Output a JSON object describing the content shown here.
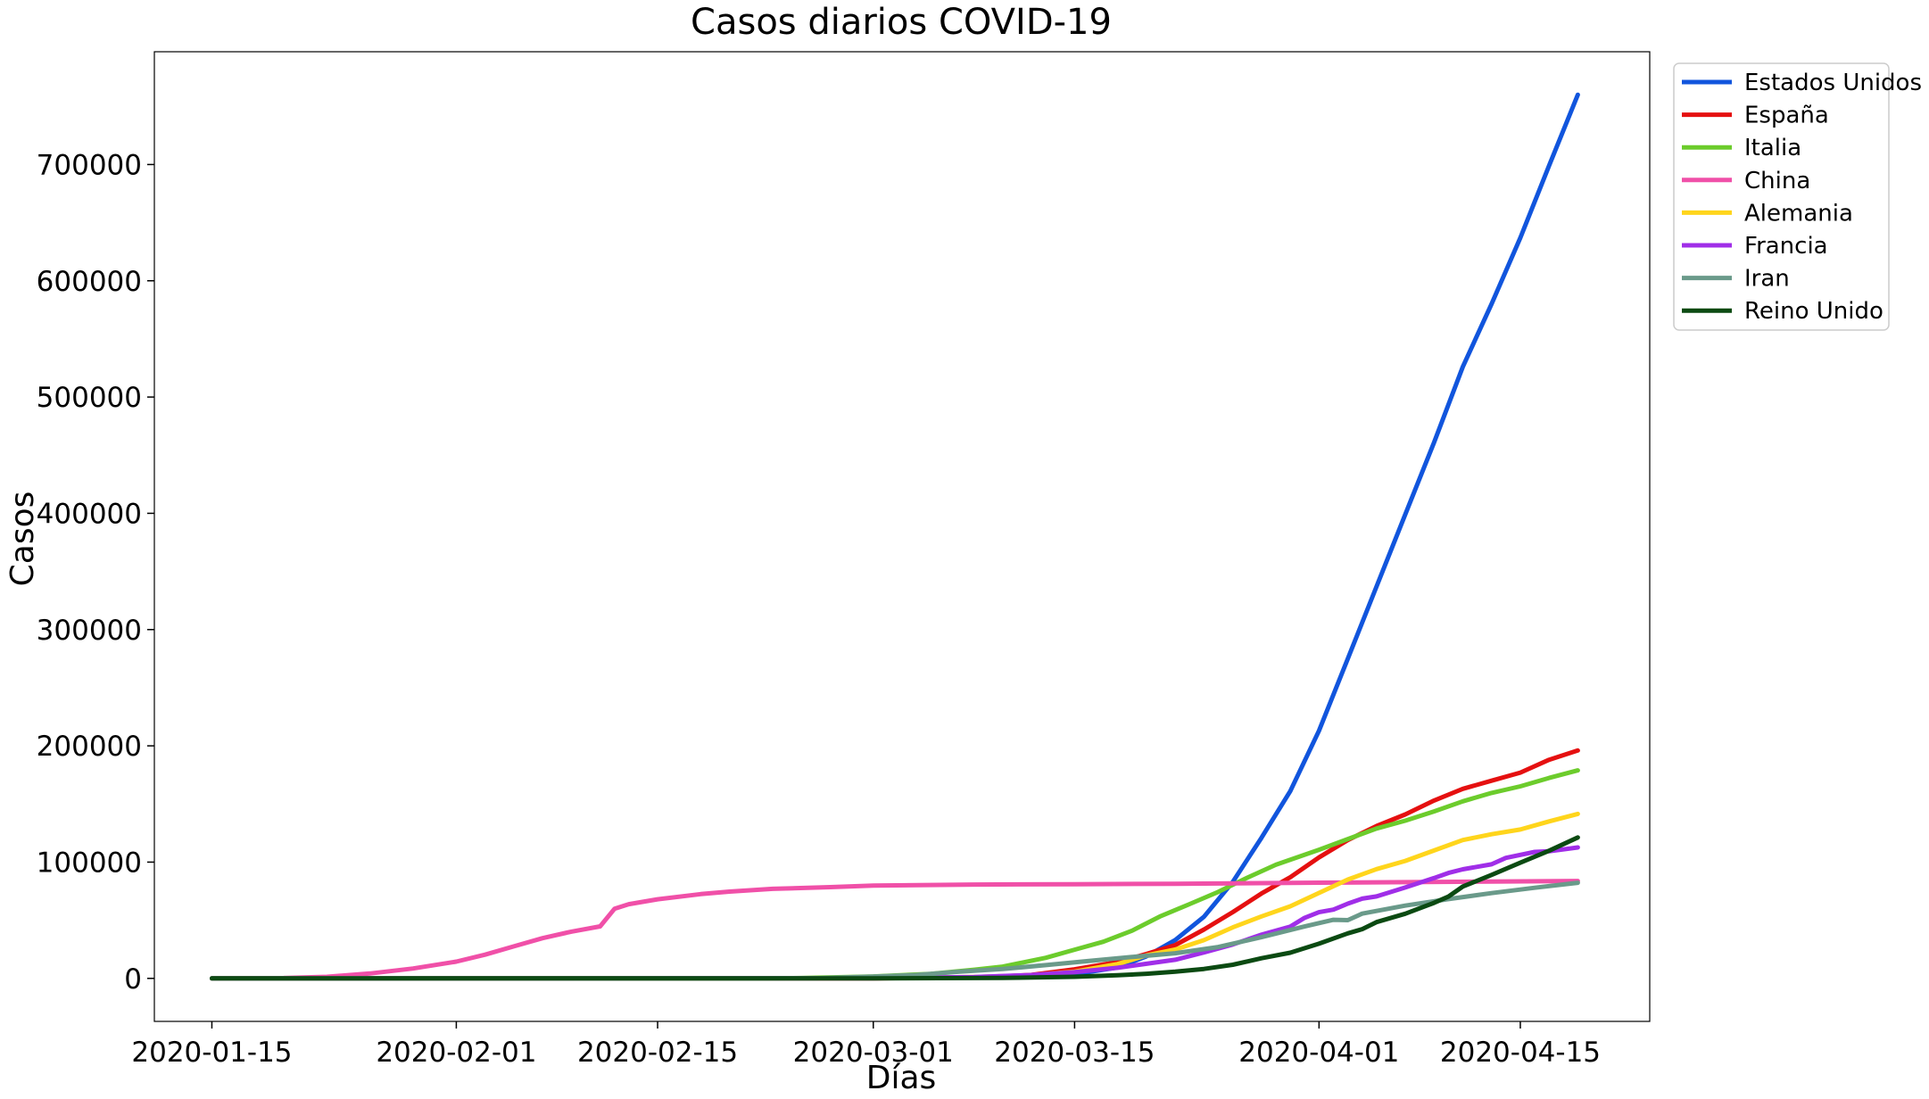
{
  "chart_data": {
    "type": "line",
    "title": "Casos diarios COVID-19",
    "xlabel": "Días",
    "ylabel": "Casos",
    "x_start": "2020-01-15",
    "x_end": "2020-04-19",
    "xlim": [
      "2020-01-11",
      "2020-04-24"
    ],
    "ylim": [
      -37000,
      797000
    ],
    "x_ticks": [
      "2020-01-15",
      "2020-02-01",
      "2020-02-15",
      "2020-03-01",
      "2020-03-15",
      "2020-04-01",
      "2020-04-15"
    ],
    "y_ticks": [
      0,
      100000,
      200000,
      300000,
      400000,
      500000,
      600000,
      700000
    ],
    "grid": false,
    "legend_position": "outside-top-right",
    "series": [
      {
        "name": "Estados Unidos",
        "color": "#1155dd",
        "points": [
          [
            "2020-01-15",
            0
          ],
          [
            "2020-03-01",
            100
          ],
          [
            "2020-03-10",
            1000
          ],
          [
            "2020-03-15",
            3500
          ],
          [
            "2020-03-18",
            9400
          ],
          [
            "2020-03-20",
            19000
          ],
          [
            "2020-03-22",
            33000
          ],
          [
            "2020-03-24",
            53000
          ],
          [
            "2020-03-26",
            83000
          ],
          [
            "2020-03-28",
            121000
          ],
          [
            "2020-03-30",
            161000
          ],
          [
            "2020-04-01",
            213000
          ],
          [
            "2020-04-03",
            275000
          ],
          [
            "2020-04-05",
            337000
          ],
          [
            "2020-04-07",
            399000
          ],
          [
            "2020-04-09",
            461000
          ],
          [
            "2020-04-11",
            526000
          ],
          [
            "2020-04-13",
            580000
          ],
          [
            "2020-04-15",
            637000
          ],
          [
            "2020-04-17",
            699000
          ],
          [
            "2020-04-19",
            760000
          ]
        ]
      },
      {
        "name": "España",
        "color": "#e51010",
        "points": [
          [
            "2020-01-15",
            0
          ],
          [
            "2020-03-01",
            80
          ],
          [
            "2020-03-08",
            700
          ],
          [
            "2020-03-12",
            3000
          ],
          [
            "2020-03-15",
            7800
          ],
          [
            "2020-03-18",
            14000
          ],
          [
            "2020-03-20",
            21000
          ],
          [
            "2020-03-22",
            28600
          ],
          [
            "2020-03-24",
            42000
          ],
          [
            "2020-03-26",
            57000
          ],
          [
            "2020-03-28",
            73000
          ],
          [
            "2020-03-30",
            87000
          ],
          [
            "2020-04-01",
            104000
          ],
          [
            "2020-04-03",
            119000
          ],
          [
            "2020-04-05",
            131000
          ],
          [
            "2020-04-07",
            141000
          ],
          [
            "2020-04-09",
            153000
          ],
          [
            "2020-04-11",
            163000
          ],
          [
            "2020-04-13",
            170000
          ],
          [
            "2020-04-15",
            177000
          ],
          [
            "2020-04-17",
            188000
          ],
          [
            "2020-04-19",
            196000
          ]
        ]
      },
      {
        "name": "Italia",
        "color": "#6ccc2c",
        "points": [
          [
            "2020-01-15",
            0
          ],
          [
            "2020-02-20",
            0
          ],
          [
            "2020-02-25",
            300
          ],
          [
            "2020-03-01",
            1700
          ],
          [
            "2020-03-05",
            3900
          ],
          [
            "2020-03-08",
            7400
          ],
          [
            "2020-03-10",
            10100
          ],
          [
            "2020-03-13",
            17700
          ],
          [
            "2020-03-15",
            24700
          ],
          [
            "2020-03-17",
            31500
          ],
          [
            "2020-03-19",
            41000
          ],
          [
            "2020-03-21",
            53600
          ],
          [
            "2020-03-23",
            63900
          ],
          [
            "2020-03-25",
            74400
          ],
          [
            "2020-03-27",
            86500
          ],
          [
            "2020-03-29",
            97700
          ],
          [
            "2020-04-01",
            110600
          ],
          [
            "2020-04-03",
            119800
          ],
          [
            "2020-04-05",
            128900
          ],
          [
            "2020-04-07",
            135600
          ],
          [
            "2020-04-09",
            143600
          ],
          [
            "2020-04-11",
            152300
          ],
          [
            "2020-04-13",
            159500
          ],
          [
            "2020-04-15",
            165200
          ],
          [
            "2020-04-17",
            172400
          ],
          [
            "2020-04-19",
            178900
          ]
        ]
      },
      {
        "name": "China",
        "color": "#f050a8",
        "points": [
          [
            "2020-01-15",
            0
          ],
          [
            "2020-01-20",
            300
          ],
          [
            "2020-01-23",
            1400
          ],
          [
            "2020-01-26",
            4200
          ],
          [
            "2020-01-29",
            8500
          ],
          [
            "2020-02-01",
            14400
          ],
          [
            "2020-02-03",
            20400
          ],
          [
            "2020-02-05",
            27500
          ],
          [
            "2020-02-07",
            34600
          ],
          [
            "2020-02-09",
            40200
          ],
          [
            "2020-02-11",
            44700
          ],
          [
            "2020-02-12",
            59800
          ],
          [
            "2020-02-13",
            63800
          ],
          [
            "2020-02-15",
            68000
          ],
          [
            "2020-02-18",
            72500
          ],
          [
            "2020-02-20",
            74600
          ],
          [
            "2020-02-23",
            77000
          ],
          [
            "2020-02-27",
            78500
          ],
          [
            "2020-03-01",
            79800
          ],
          [
            "2020-03-08",
            80700
          ],
          [
            "2020-03-15",
            81000
          ],
          [
            "2020-03-22",
            81400
          ],
          [
            "2020-04-01",
            82300
          ],
          [
            "2020-04-19",
            83800
          ]
        ]
      },
      {
        "name": "Alemania",
        "color": "#ffd51c",
        "points": [
          [
            "2020-01-15",
            0
          ],
          [
            "2020-03-01",
            130
          ],
          [
            "2020-03-08",
            1100
          ],
          [
            "2020-03-12",
            2700
          ],
          [
            "2020-03-15",
            5800
          ],
          [
            "2020-03-18",
            12300
          ],
          [
            "2020-03-20",
            19800
          ],
          [
            "2020-03-22",
            24800
          ],
          [
            "2020-03-24",
            32900
          ],
          [
            "2020-03-26",
            43900
          ],
          [
            "2020-03-28",
            53300
          ],
          [
            "2020-03-30",
            62000
          ],
          [
            "2020-04-01",
            73500
          ],
          [
            "2020-04-03",
            85000
          ],
          [
            "2020-04-05",
            94000
          ],
          [
            "2020-04-07",
            101000
          ],
          [
            "2020-04-09",
            110000
          ],
          [
            "2020-04-11",
            119000
          ],
          [
            "2020-04-13",
            124000
          ],
          [
            "2020-04-15",
            128000
          ],
          [
            "2020-04-17",
            135000
          ],
          [
            "2020-04-19",
            141500
          ]
        ]
      },
      {
        "name": "Francia",
        "color": "#a02ee8",
        "points": [
          [
            "2020-01-15",
            0
          ],
          [
            "2020-03-01",
            130
          ],
          [
            "2020-03-08",
            1100
          ],
          [
            "2020-03-12",
            2900
          ],
          [
            "2020-03-15",
            5400
          ],
          [
            "2020-03-18",
            9100
          ],
          [
            "2020-03-20",
            12600
          ],
          [
            "2020-03-22",
            16000
          ],
          [
            "2020-03-24",
            22300
          ],
          [
            "2020-03-26",
            29100
          ],
          [
            "2020-03-28",
            37600
          ],
          [
            "2020-03-30",
            44500
          ],
          [
            "2020-03-31",
            52100
          ],
          [
            "2020-04-01",
            56900
          ],
          [
            "2020-04-02",
            59100
          ],
          [
            "2020-04-03",
            64300
          ],
          [
            "2020-04-04",
            68600
          ],
          [
            "2020-04-05",
            70500
          ],
          [
            "2020-04-07",
            78200
          ],
          [
            "2020-04-09",
            86300
          ],
          [
            "2020-04-10",
            90700
          ],
          [
            "2020-04-11",
            93800
          ],
          [
            "2020-04-13",
            98100
          ],
          [
            "2020-04-14",
            103600
          ],
          [
            "2020-04-16",
            108800
          ],
          [
            "2020-04-17",
            109300
          ],
          [
            "2020-04-19",
            112600
          ]
        ]
      },
      {
        "name": "Iran",
        "color": "#6a9a8a",
        "points": [
          [
            "2020-01-15",
            0
          ],
          [
            "2020-02-22",
            0
          ],
          [
            "2020-02-26",
            140
          ],
          [
            "2020-03-01",
            1500
          ],
          [
            "2020-03-04",
            2900
          ],
          [
            "2020-03-07",
            5800
          ],
          [
            "2020-03-10",
            8000
          ],
          [
            "2020-03-13",
            11400
          ],
          [
            "2020-03-16",
            15000
          ],
          [
            "2020-03-19",
            18400
          ],
          [
            "2020-03-22",
            21600
          ],
          [
            "2020-03-25",
            27000
          ],
          [
            "2020-03-28",
            35400
          ],
          [
            "2020-03-31",
            44600
          ],
          [
            "2020-04-02",
            50400
          ],
          [
            "2020-04-03",
            50100
          ],
          [
            "2020-04-04",
            55700
          ],
          [
            "2020-04-07",
            62600
          ],
          [
            "2020-04-10",
            68200
          ],
          [
            "2020-04-13",
            73300
          ],
          [
            "2020-04-16",
            77900
          ],
          [
            "2020-04-19",
            82200
          ]
        ]
      },
      {
        "name": "Reino Unido",
        "color": "#0b4a12",
        "points": [
          [
            "2020-01-15",
            0
          ],
          [
            "2020-03-01",
            40
          ],
          [
            "2020-03-10",
            370
          ],
          [
            "2020-03-15",
            1400
          ],
          [
            "2020-03-18",
            2700
          ],
          [
            "2020-03-20",
            4000
          ],
          [
            "2020-03-22",
            5700
          ],
          [
            "2020-03-24",
            8100
          ],
          [
            "2020-03-26",
            11700
          ],
          [
            "2020-03-28",
            17300
          ],
          [
            "2020-03-30",
            22100
          ],
          [
            "2020-04-01",
            29800
          ],
          [
            "2020-04-03",
            38700
          ],
          [
            "2020-04-04",
            42300
          ],
          [
            "2020-04-05",
            48400
          ],
          [
            "2020-04-07",
            55600
          ],
          [
            "2020-04-09",
            65000
          ],
          [
            "2020-04-10",
            70300
          ],
          [
            "2020-04-11",
            79000
          ],
          [
            "2020-04-13",
            89000
          ],
          [
            "2020-04-15",
            99500
          ],
          [
            "2020-04-17",
            109800
          ],
          [
            "2020-04-19",
            121200
          ]
        ]
      }
    ]
  }
}
